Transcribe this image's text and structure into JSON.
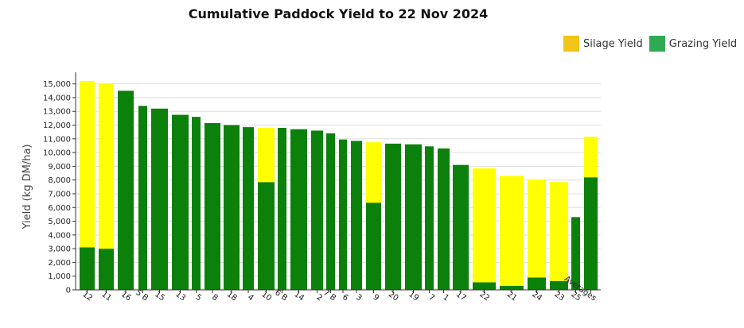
{
  "chart_data": {
    "type": "bar",
    "stacked": true,
    "title": "Cumulative Paddock Yield to 22 Nov 2024",
    "ylabel": "Yield (kg DM/ha)",
    "xlabel": "",
    "ylim": [
      0,
      15500
    ],
    "yticks": [
      0,
      1000,
      2000,
      3000,
      4000,
      5000,
      6000,
      7000,
      8000,
      9000,
      10000,
      11000,
      12000,
      13000,
      14000,
      15000
    ],
    "grid": true,
    "legend_position": "top-right",
    "categories": [
      "12",
      "11",
      "16",
      "5 B",
      "15",
      "13",
      "5",
      "8",
      "18",
      "4",
      "10",
      "6 B",
      "14",
      "2",
      "7 B",
      "6",
      "3",
      "9",
      "20",
      "19",
      "7",
      "1",
      "17",
      "22",
      "21",
      "24",
      "23",
      "25",
      "Averages"
    ],
    "series": [
      {
        "name": "Grazing Yield",
        "color": "#0b800b",
        "legend_color": "#2eaa55",
        "values": [
          3100,
          3000,
          14500,
          13400,
          13200,
          12750,
          12600,
          12150,
          12000,
          11850,
          7850,
          11800,
          11700,
          11600,
          11400,
          10950,
          10850,
          6350,
          10650,
          10600,
          10450,
          10300,
          9100,
          550,
          300,
          900,
          650,
          5300,
          8200
        ]
      },
      {
        "name": "Silage Yield",
        "color": "#ffff00",
        "legend_color": "#f2c418",
        "values": [
          12100,
          12050,
          0,
          0,
          0,
          0,
          0,
          0,
          0,
          0,
          3950,
          0,
          0,
          0,
          0,
          0,
          0,
          4400,
          0,
          0,
          0,
          0,
          0,
          8300,
          8000,
          7150,
          7200,
          0,
          2950
        ]
      }
    ]
  }
}
